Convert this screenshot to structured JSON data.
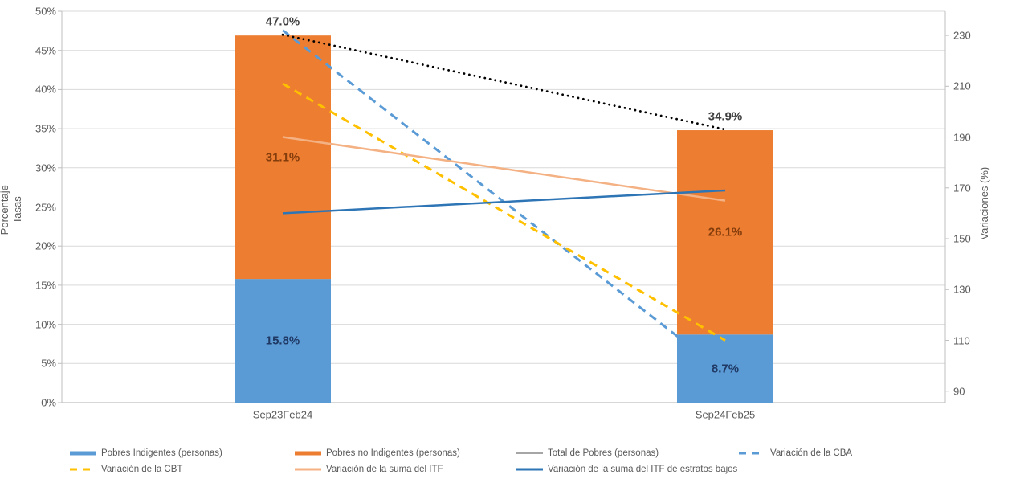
{
  "chart_data": {
    "type": "combo-stacked-bar-line",
    "title": "",
    "categories": [
      "Sep23Feb24",
      "Sep24Feb25"
    ],
    "left_axis": {
      "title": "Porcentaje\nTasas",
      "min": 0,
      "max": 50,
      "tick_values": [
        0,
        5,
        10,
        15,
        20,
        25,
        30,
        35,
        40,
        45,
        50
      ],
      "ticks": [
        "0%",
        "5%",
        "10%",
        "15%",
        "20%",
        "25%",
        "30%",
        "35%",
        "40%",
        "45%",
        "50%"
      ]
    },
    "right_axis": {
      "title": "Variaciones (%)",
      "min": 85.5,
      "max": 239.5,
      "tick_values": [
        90,
        110,
        130,
        150,
        170,
        190,
        210,
        230
      ],
      "ticks": [
        "90",
        "110",
        "130",
        "150",
        "170",
        "190",
        "210",
        "230"
      ]
    },
    "bar_series": [
      {
        "name": "Pobres Indigentes (personas)",
        "color": "#5B9BD5",
        "values": [
          15.8,
          8.7
        ],
        "labels": [
          "15.8%",
          "8.7%"
        ],
        "label_color": "#1F3864"
      },
      {
        "name": "Pobres no Indigentes (personas)",
        "color": "#ED7D31",
        "values": [
          31.1,
          26.1
        ],
        "labels": [
          "31.1%",
          "26.1%"
        ],
        "label_color": "#833C0C"
      }
    ],
    "total_labels": {
      "values": [
        47.0,
        34.9
      ],
      "labels": [
        "47.0%",
        "34.9%"
      ],
      "color": "#404040"
    },
    "line_series": [
      {
        "name": "Total de Pobres (personas)",
        "axis": "left",
        "style": "dotted",
        "color": "#000000",
        "values": [
          47.0,
          34.9
        ]
      },
      {
        "name": "Variación de la CBA",
        "axis": "right",
        "style": "dashed",
        "color": "#5B9BD5",
        "values": [
          232,
          97
        ],
        "behind_second_bar": true
      },
      {
        "name": "Variación de la CBT",
        "axis": "right",
        "style": "dashed",
        "color": "#FFC000",
        "values": [
          211,
          110
        ]
      },
      {
        "name": "Variación de la suma del ITF",
        "axis": "right",
        "style": "solid",
        "color": "#F4B183",
        "values": [
          190,
          165
        ]
      },
      {
        "name": "Variación de la suma del ITF de estratos bajos",
        "axis": "right",
        "style": "solid",
        "color": "#2E75B6",
        "values": [
          160,
          169
        ]
      }
    ],
    "legend": {
      "rows": [
        [
          {
            "label": "Pobres Indigentes (personas)",
            "swatch": "bar",
            "color": "#5B9BD5"
          },
          {
            "label": "Pobres no Indigentes (personas)",
            "swatch": "bar",
            "color": "#ED7D31"
          },
          {
            "label": "Total de Pobres (personas)",
            "swatch": "line-solid",
            "color": "#A6A6A6",
            "thin": true
          },
          {
            "label": "Variación de la CBA",
            "swatch": "line-dashed",
            "color": "#5B9BD5"
          }
        ],
        [
          {
            "label": "Variación de la CBT",
            "swatch": "line-dashed",
            "color": "#FFC000"
          },
          {
            "label": "Variación de la suma del ITF",
            "swatch": "line-solid",
            "color": "#F4B183"
          },
          {
            "label": "Variación de la suma del ITF de estratos bajos",
            "swatch": "line-solid",
            "color": "#2E75B6"
          }
        ]
      ]
    },
    "style": {
      "gridline_color": "#D9D9D9",
      "axis_line_color": "#BFBFBF",
      "background": "#FFFFFF"
    }
  }
}
